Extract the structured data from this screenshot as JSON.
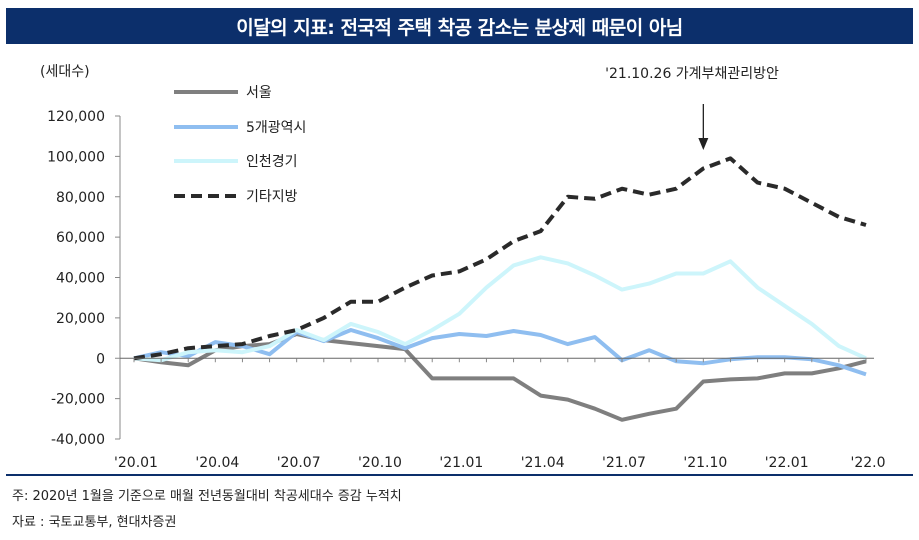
{
  "header": {
    "title": "이달의 지표: 전국적 주택 착공 감소는 분상제 때문이 아님"
  },
  "footer": {
    "note": "주: 2020년 1월을 기준으로 매월 전년동월대비 착공세대수 증감 누적치",
    "source": "자료 : 국토교통부, 현대차증권"
  },
  "colors": {
    "title_bg": "#0c2f6b",
    "seoul": "#7f7f7f",
    "metro": "#8fbef0",
    "incheon": "#cdf5fb",
    "other": "#2a2a2a"
  },
  "chart_data": {
    "type": "line",
    "ylabel": "(세대수)",
    "ylim": [
      -40000,
      120000
    ],
    "yticks": [
      120000,
      100000,
      80000,
      60000,
      40000,
      20000,
      0,
      -20000,
      -40000
    ],
    "ytick_labels": [
      "120,000",
      "100,000",
      "80,000",
      "60,000",
      "40,000",
      "20,000",
      "0",
      "-20,000",
      "-40,000"
    ],
    "x": [
      "2020-01",
      "2020-02",
      "2020-03",
      "2020-04",
      "2020-05",
      "2020-06",
      "2020-07",
      "2020-08",
      "2020-09",
      "2020-10",
      "2020-11",
      "2020-12",
      "2021-01",
      "2021-02",
      "2021-03",
      "2021-04",
      "2021-05",
      "2021-06",
      "2021-07",
      "2021-08",
      "2021-09",
      "2021-10",
      "2021-11",
      "2021-12",
      "2022-01",
      "2022-02",
      "2022-03",
      "2022-04"
    ],
    "xtick_labels": [
      "'20.01",
      "'20.04",
      "'20.07",
      "'20.10",
      "'21.01",
      "'21.04",
      "'21.07",
      "'21.10",
      "'22.01",
      "'22.0"
    ],
    "xtick_indices": [
      0,
      3,
      6,
      9,
      12,
      15,
      18,
      21,
      24,
      27
    ],
    "legend_position": "top-left",
    "series": [
      {
        "name": "서울",
        "color_key": "seoul",
        "dash": "solid",
        "values": [
          0,
          -2000,
          -3500,
          4000,
          6000,
          7000,
          12000,
          9000,
          7500,
          6000,
          4500,
          -10000,
          -10000,
          -10000,
          -10000,
          -18500,
          -20500,
          -25000,
          -30500,
          -27500,
          -25000,
          -11500,
          -10500,
          -10000,
          -7500,
          -7500,
          -5000,
          -1500
        ]
      },
      {
        "name": "5개광역시",
        "color_key": "metro",
        "dash": "solid",
        "values": [
          0,
          3000,
          1000,
          8000,
          6000,
          2000,
          13000,
          8500,
          14000,
          10000,
          5000,
          10000,
          12000,
          11000,
          13500,
          11500,
          7000,
          10500,
          -1000,
          4000,
          -1500,
          -2500,
          -500,
          500,
          500,
          -500,
          -3500,
          -8000
        ]
      },
      {
        "name": "인천경기",
        "color_key": "incheon",
        "dash": "solid",
        "values": [
          0,
          -1000,
          3000,
          4000,
          3000,
          6000,
          14000,
          9000,
          17000,
          13000,
          7000,
          14000,
          22000,
          35000,
          46000,
          50000,
          47000,
          41000,
          34000,
          37000,
          42000,
          42000,
          48000,
          35000,
          26000,
          17000,
          6000,
          0
        ]
      },
      {
        "name": "기타지방",
        "color_key": "other",
        "dash": "dashed",
        "values": [
          0,
          2000,
          5000,
          6000,
          7000,
          11000,
          14000,
          20000,
          28000,
          28000,
          35000,
          41000,
          43000,
          49000,
          58000,
          63000,
          80000,
          79000,
          84000,
          81000,
          84000,
          94000,
          99000,
          87000,
          84000,
          77000,
          70000,
          66000
        ]
      }
    ],
    "annotations": [
      {
        "text": "'21.10.26 가계부채관리방안",
        "x": "2021-10",
        "arrow": "down"
      }
    ]
  }
}
